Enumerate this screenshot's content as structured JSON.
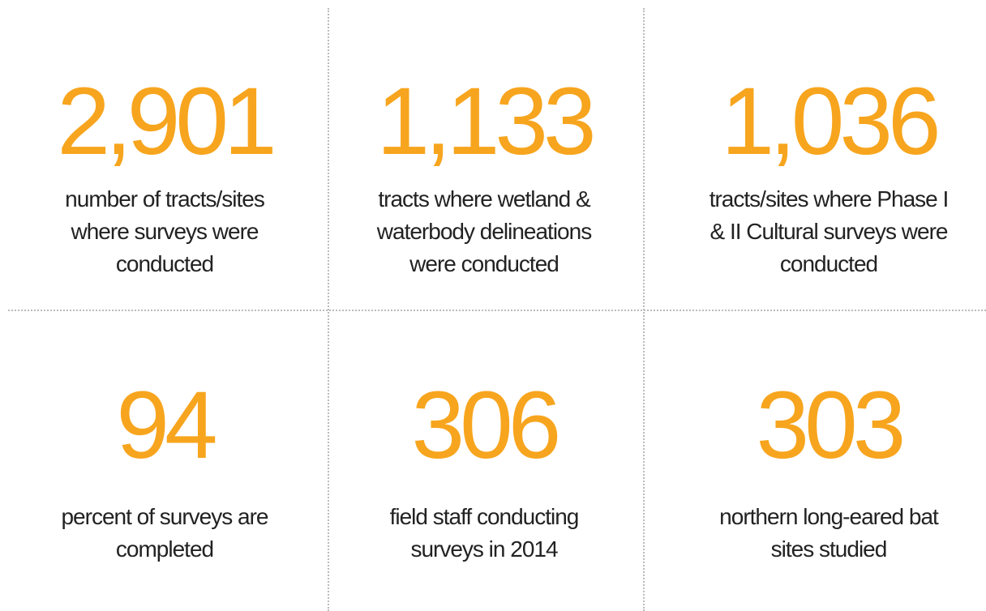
{
  "stats": [
    {
      "value": "2,901",
      "lines": [
        "number of tracts/sites",
        "where surveys were",
        "conducted"
      ]
    },
    {
      "value": "1,133",
      "lines": [
        "tracts where wetland &",
        "waterbody delineations",
        "were conducted"
      ]
    },
    {
      "value": "1,036",
      "lines": [
        "tracts/sites where Phase I",
        "& II Cultural surveys were",
        "conducted"
      ]
    },
    {
      "value": "94",
      "lines": [
        "percent of surveys are",
        "completed"
      ]
    },
    {
      "value": "306",
      "lines": [
        "field staff conducting",
        "surveys in 2014"
      ]
    },
    {
      "value": "303",
      "lines": [
        "northern long-eared bat",
        "sites studied"
      ]
    }
  ]
}
